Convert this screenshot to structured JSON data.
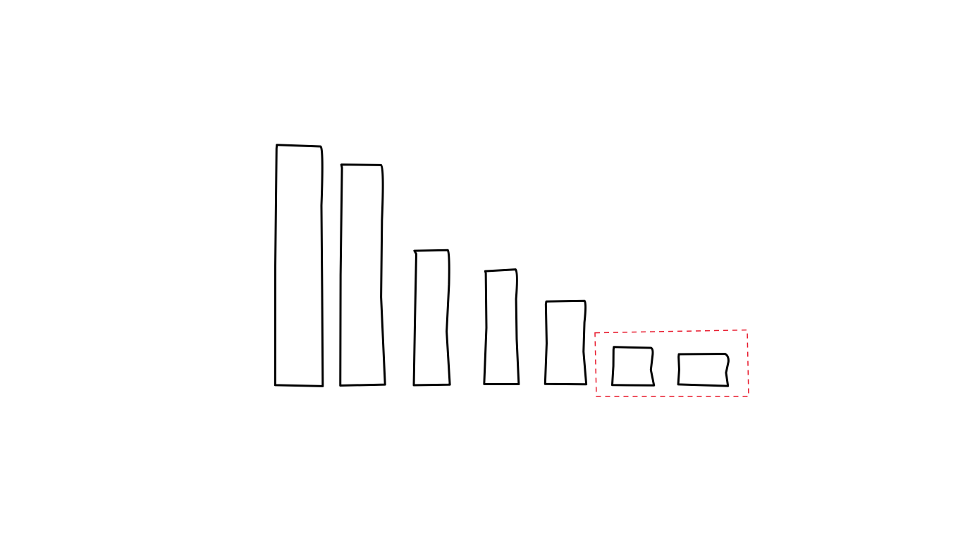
{
  "chart_data": {
    "type": "bar",
    "style": "hand-drawn sketch, outline-only bars",
    "categories": [
      "",
      "",
      "",
      "",
      "",
      "",
      ""
    ],
    "values": [
      100,
      92,
      56,
      48,
      35,
      16,
      13
    ],
    "ylim": [
      0,
      100
    ],
    "title": "",
    "xlabel": "",
    "ylabel": "",
    "axes_visible": false,
    "grid": false,
    "legend": "none",
    "highlight": {
      "category_indices": [
        5,
        6
      ],
      "style": "dashed box"
    }
  },
  "colors": {
    "bar_stroke": "#000000",
    "highlight_stroke": "#e8192c",
    "background": "#ffffff"
  }
}
